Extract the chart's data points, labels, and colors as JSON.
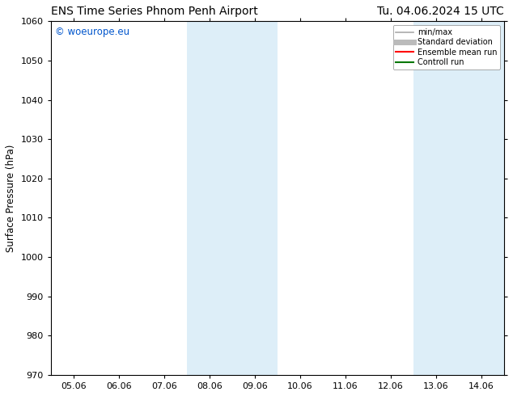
{
  "title_left": "ENS Time Series Phnom Penh Airport",
  "title_right": "Tu. 04.06.2024 15 UTC",
  "ylabel": "Surface Pressure (hPa)",
  "ylim": [
    970,
    1060
  ],
  "yticks": [
    970,
    980,
    990,
    1000,
    1010,
    1020,
    1030,
    1040,
    1050,
    1060
  ],
  "xtick_labels": [
    "05.06",
    "06.06",
    "07.06",
    "08.06",
    "09.06",
    "10.06",
    "11.06",
    "12.06",
    "13.06",
    "14.06"
  ],
  "xtick_positions": [
    0,
    1,
    2,
    3,
    4,
    5,
    6,
    7,
    8,
    9
  ],
  "xlim": [
    -0.5,
    9.5
  ],
  "shaded_bands": [
    {
      "x_start": 2.5,
      "x_end": 3.5,
      "color": "#ddeef8"
    },
    {
      "x_start": 3.5,
      "x_end": 4.5,
      "color": "#ddeef8"
    },
    {
      "x_start": 7.5,
      "x_end": 8.5,
      "color": "#ddeef8"
    },
    {
      "x_start": 8.5,
      "x_end": 9.5,
      "color": "#ddeef8"
    }
  ],
  "watermark_text": "© woeurope.eu",
  "watermark_color": "#0055cc",
  "bg_color": "#ffffff",
  "legend_items": [
    {
      "label": "min/max",
      "color": "#aaaaaa",
      "lw": 1.2,
      "style": "solid"
    },
    {
      "label": "Standard deviation",
      "color": "#bbbbbb",
      "lw": 5,
      "style": "solid"
    },
    {
      "label": "Ensemble mean run",
      "color": "#ff0000",
      "lw": 1.5,
      "style": "solid"
    },
    {
      "label": "Controll run",
      "color": "#007700",
      "lw": 1.5,
      "style": "solid"
    }
  ],
  "title_fontsize": 10,
  "axis_fontsize": 8.5,
  "tick_fontsize": 8,
  "watermark_fontsize": 8.5
}
